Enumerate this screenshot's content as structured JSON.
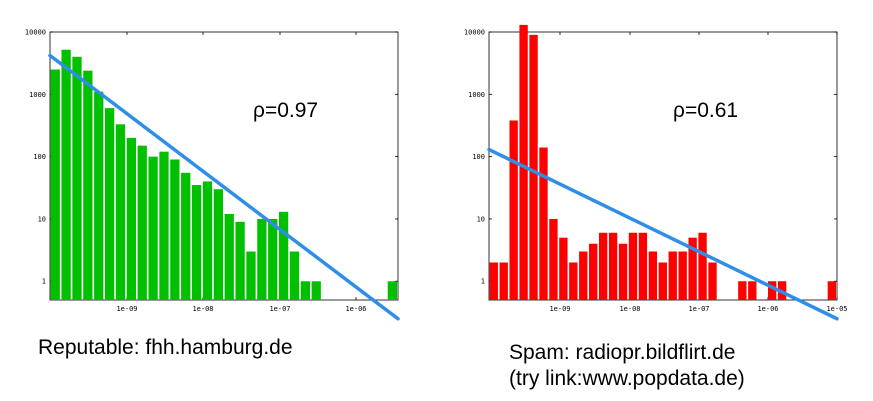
{
  "chart_data": [
    {
      "type": "bar",
      "yscale": "log",
      "xscale": "log",
      "ylim": [
        0.5,
        10000
      ],
      "y_ticks": [
        "10000",
        "1000",
        "100",
        "10",
        "1"
      ],
      "x_ticks": [
        "1e-09",
        "1e-08",
        "1e-07",
        "1e-06"
      ],
      "bar_color": "#00c000",
      "fit_line_color": "#2f8fe8",
      "annotation": "ρ=0.97",
      "values": [
        2500,
        5200,
        4000,
        2400,
        1100,
        600,
        330,
        200,
        150,
        100,
        120,
        90,
        55,
        35,
        40,
        30,
        12,
        9,
        3,
        10,
        10,
        13,
        3,
        1,
        1,
        0,
        0,
        0,
        0,
        0,
        0,
        1
      ],
      "fit_line": {
        "start": 4200,
        "end": 0.25
      }
    },
    {
      "type": "bar",
      "yscale": "log",
      "xscale": "log",
      "ylim": [
        0.5,
        10000
      ],
      "y_ticks": [
        "10000",
        "1000",
        "100",
        "10",
        "1"
      ],
      "x_ticks": [
        "1e-09",
        "1e-08",
        "1e-07",
        "1e-06",
        "1e-05"
      ],
      "bar_color": "#ff0000",
      "fit_line_color": "#2f8fe8",
      "annotation": "ρ=0.61",
      "values": [
        2,
        2,
        380,
        13000,
        9000,
        140,
        10,
        5,
        2,
        3,
        4,
        6,
        6,
        4,
        6,
        6,
        3,
        2,
        3,
        3,
        5,
        6,
        2,
        0,
        0,
        1,
        1,
        0,
        1,
        1,
        0,
        0,
        0,
        0,
        1
      ],
      "fit_line": {
        "start": 130,
        "end": 0.25
      }
    }
  ],
  "captions": {
    "left": "Reputable: fhh.hamburg.de",
    "right_line1": "Spam: radiopr.bildflirt.de",
    "right_line2": "(try link:www.popdata.de)"
  }
}
